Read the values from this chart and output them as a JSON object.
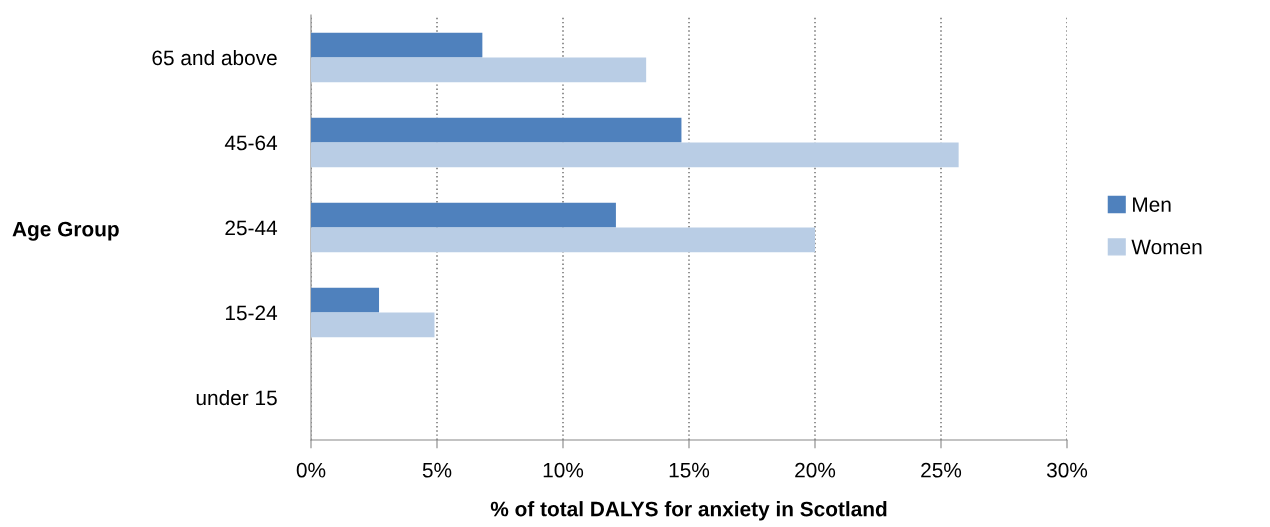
{
  "chart_data": {
    "type": "bar",
    "orientation": "horizontal",
    "xlabel": "% of total DALYS for anxiety in Scotland",
    "ylabel": "Age Group",
    "categories": [
      "65 and above",
      "45-64",
      "25-44",
      "15-24",
      "under 15"
    ],
    "series": [
      {
        "name": "Men",
        "color": "#4f81bd",
        "values": [
          6.8,
          14.7,
          12.1,
          2.7,
          0
        ]
      },
      {
        "name": "Women",
        "color": "#b9cde5",
        "values": [
          13.3,
          25.7,
          20.0,
          4.9,
          0
        ]
      }
    ],
    "xlim": [
      0,
      30
    ],
    "xticks": [
      {
        "value": 0,
        "label": "0%"
      },
      {
        "value": 5,
        "label": "5%"
      },
      {
        "value": 10,
        "label": "10%"
      },
      {
        "value": 15,
        "label": "15%"
      },
      {
        "value": 20,
        "label": "20%"
      },
      {
        "value": 25,
        "label": "25%"
      },
      {
        "value": 30,
        "label": "30%"
      }
    ],
    "grid": "x",
    "legend": "right"
  }
}
